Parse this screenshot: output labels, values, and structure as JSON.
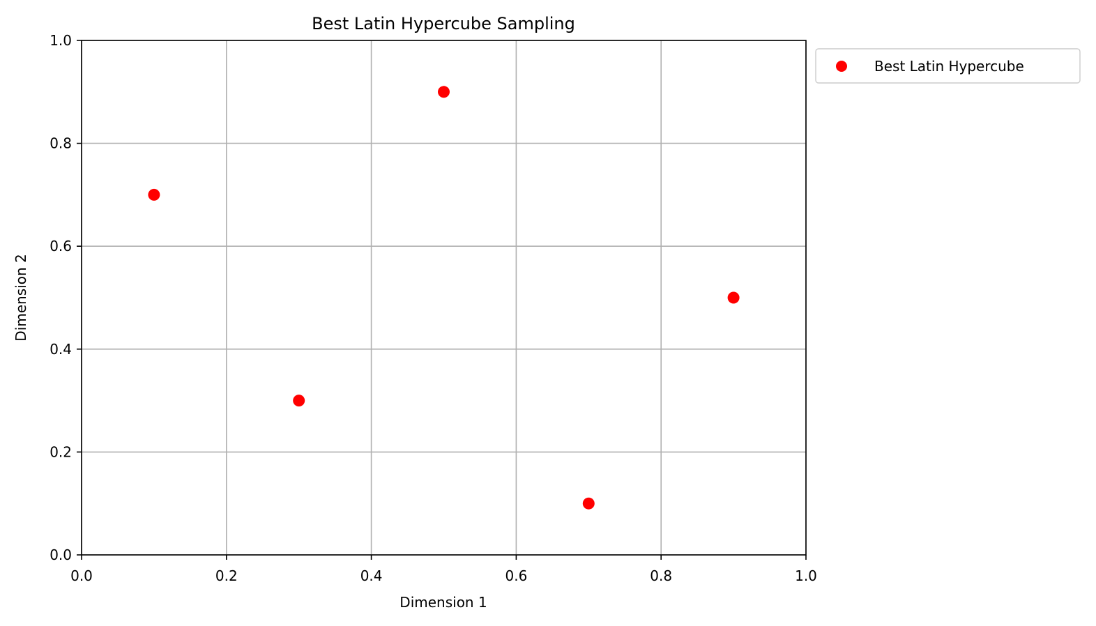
{
  "chart_data": {
    "type": "scatter",
    "title": "Best Latin Hypercube Sampling",
    "xlabel": "Dimension 1",
    "ylabel": "Dimension 2",
    "xlim": [
      0.0,
      1.0
    ],
    "ylim": [
      0.0,
      1.0
    ],
    "xticks": [
      "0.0",
      "0.2",
      "0.4",
      "0.6",
      "0.8",
      "1.0"
    ],
    "yticks": [
      "0.0",
      "0.2",
      "0.4",
      "0.6",
      "0.8",
      "1.0"
    ],
    "grid": true,
    "legend_position": "outside upper right",
    "series": [
      {
        "name": "Best Latin Hypercube",
        "color": "#ff0000",
        "x": [
          0.1,
          0.3,
          0.5,
          0.7,
          0.9
        ],
        "y": [
          0.7,
          0.3,
          0.9,
          0.1,
          0.5
        ]
      }
    ]
  }
}
